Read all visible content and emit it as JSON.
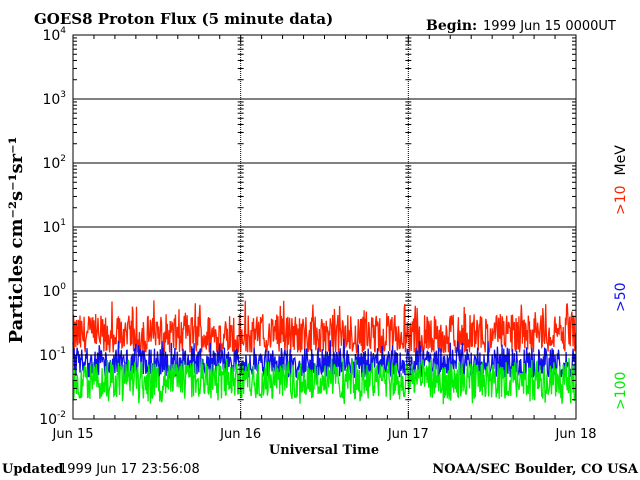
{
  "chart_data": {
    "type": "line",
    "title": "GOES8 Proton Flux (5 minute data)",
    "begin_label": "Begin:",
    "begin_value": "1999 Jun 15 0000UT",
    "ylabel": "Particles cm⁻²s⁻¹sr⁻¹",
    "xlabel": "Universal Time",
    "yscale": "log",
    "ylim": [
      0.01,
      10000
    ],
    "yticks": [
      {
        "base": "10",
        "exp": "4"
      },
      {
        "base": "10",
        "exp": "3"
      },
      {
        "base": "10",
        "exp": "2"
      },
      {
        "base": "10",
        "exp": "1"
      },
      {
        "base": "10",
        "exp": "0"
      },
      {
        "base": "10",
        "exp": "-1"
      },
      {
        "base": "10",
        "exp": "-2"
      }
    ],
    "xlim_days": [
      0,
      3
    ],
    "x_tick_labels": [
      "Jun 15",
      "Jun 16",
      "Jun 17",
      "Jun 18"
    ],
    "legend": [
      {
        "label": ">10",
        "unit": "MeV",
        "color": "#ff2200"
      },
      {
        "label": ">50",
        "unit": "",
        "color": "#1111ee"
      },
      {
        "label": ">100",
        "unit": "",
        "color": "#00ee00"
      }
    ],
    "series": [
      {
        "name": ">10 MeV",
        "color": "#ff2200",
        "base": 0.2,
        "min": 0.11,
        "max": 0.75
      },
      {
        "name": ">50 MeV",
        "color": "#1111ee",
        "base": 0.075,
        "min": 0.045,
        "max": 0.18
      },
      {
        "name": ">100 MeV",
        "color": "#00ee00",
        "base": 0.04,
        "min": 0.017,
        "max": 0.09
      }
    ]
  },
  "footer": {
    "updated_label": "Updated",
    "updated_value": "1999 Jun 17 23:56:08",
    "credit": "NOAA/SEC Boulder, CO USA"
  }
}
